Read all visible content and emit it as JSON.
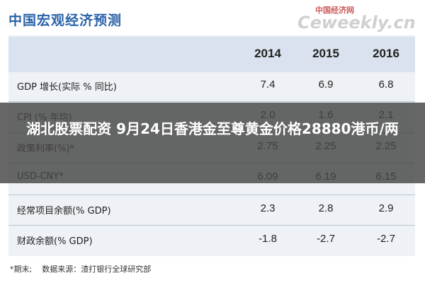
{
  "header": {
    "title": "中国宏观经济预测",
    "logo_cn": "中国经济网",
    "logo_en": "Ceweekly.cn"
  },
  "table": {
    "columns": [
      "2014",
      "2015",
      "2016"
    ],
    "rows": [
      {
        "label": "GDP 增长(实际 % 同比)",
        "values": [
          "7.4",
          "6.9",
          "6.8"
        ]
      },
      {
        "label": "CPI (% 年均)",
        "values": [
          "2.0",
          "1.6",
          "2.1"
        ]
      },
      {
        "label": "政策利率(%)*",
        "values": [
          "2.75",
          "2.25",
          "2.25"
        ]
      },
      {
        "label": "USD-CNY*",
        "values": [
          "6.09",
          "6.19",
          "6.15"
        ]
      },
      {
        "label": "经常项目余额(% GDP)",
        "values": [
          "2.3",
          "2.8",
          "2.9"
        ]
      },
      {
        "label": "财政余额(% GDP)",
        "values": [
          "-1.8",
          "-2.7",
          "-2.7"
        ]
      }
    ]
  },
  "footnote": "*期末;    数据来源：渣打银行全球研究部",
  "banner": "湖北股票配资 9月24日香港金至尊黄金价格28880港币/两"
}
